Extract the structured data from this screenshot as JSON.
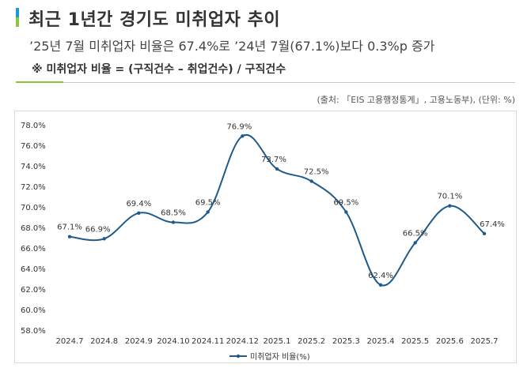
{
  "header": {
    "title": "최근 1년간 경기도 미취업자 추이",
    "subtitle": "’25년 7월 미취업자 비율은 67.4%로 ’24년 7월(67.1%)보다 0.3%p 증가",
    "formula": "※ 미취업자 비율 = (구직건수 – 취업건수) / 구직건수",
    "source": "(출처: 「EIS 고용행정통계」, 고용노동부), (단위: %)"
  },
  "colors": {
    "accent_top": "#1a9bd7",
    "accent_bottom": "#8cc63f",
    "divider_accent": "#8cc63f",
    "series": "#1f5a8a"
  },
  "chart_data": {
    "type": "line",
    "categories": [
      "2024.7",
      "2024.8",
      "2024.9",
      "2024.10",
      "2024.11",
      "2024.12",
      "2025.1",
      "2025.2",
      "2025.3",
      "2025.4",
      "2025.5",
      "2025.6",
      "2025.7"
    ],
    "series": [
      {
        "name": "미취업자 비율(%)",
        "values": [
          67.1,
          66.9,
          69.4,
          68.5,
          69.5,
          76.9,
          73.7,
          72.5,
          69.5,
          62.4,
          66.5,
          70.1,
          67.4
        ]
      }
    ],
    "data_labels": [
      "67.1%",
      "66.9%",
      "69.4%",
      "68.5%",
      "69.5%",
      "76.9%",
      "73.7%",
      "72.5%",
      "69.5%",
      "62.4%",
      "66.5%",
      "70.1%",
      "67.4%"
    ],
    "ylim": [
      58.0,
      78.0
    ],
    "yticks": [
      58.0,
      60.0,
      62.0,
      64.0,
      66.0,
      68.0,
      70.0,
      72.0,
      74.0,
      76.0,
      78.0
    ],
    "ytick_labels": [
      "58.0%",
      "60.0%",
      "62.0%",
      "64.0%",
      "66.0%",
      "68.0%",
      "70.0%",
      "72.0%",
      "74.0%",
      "76.0%",
      "78.0%"
    ],
    "legend": {
      "label": "미취업자 비율(%)",
      "position": "bottom"
    },
    "grid": false
  }
}
